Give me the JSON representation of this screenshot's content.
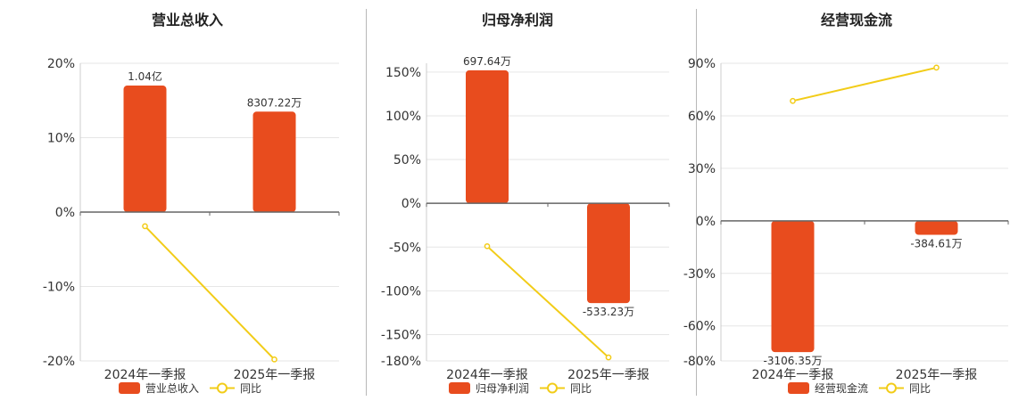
{
  "chart_data": [
    {
      "type": "bar",
      "title": "营业总收入",
      "categories": [
        "2024年一季报",
        "2025年一季报"
      ],
      "series": [
        {
          "name": "营业总收入",
          "kind": "bar",
          "values": [
            17,
            13.5
          ],
          "labels": [
            "1.04亿",
            "8307.22万"
          ],
          "color": "#e84c1e"
        },
        {
          "name": "同比",
          "kind": "line",
          "values": [
            -1.9,
            -19.8
          ],
          "color": "#f2cc18"
        }
      ],
      "ylim": [
        -20,
        20
      ],
      "yticks": [
        20,
        10,
        0,
        -10,
        -20
      ],
      "ytick_labels": [
        "20%",
        "10%",
        "0%",
        "-10%",
        "-20%"
      ],
      "grid": true,
      "legend": "bottom"
    },
    {
      "type": "bar",
      "title": "归母净利润",
      "categories": [
        "2024年一季报",
        "2025年一季报"
      ],
      "series": [
        {
          "name": "归母净利润",
          "kind": "bar",
          "values": [
            152,
            -114
          ],
          "labels": [
            "697.64万",
            "-533.23万"
          ],
          "color": "#e84c1e"
        },
        {
          "name": "同比",
          "kind": "line",
          "values": [
            -49,
            -176
          ],
          "color": "#f2cc18"
        }
      ],
      "ylim": [
        -180,
        160
      ],
      "yticks": [
        150,
        100,
        50,
        0,
        -50,
        -100,
        -150,
        -180
      ],
      "ytick_labels": [
        "150%",
        "100%",
        "50%",
        "0%",
        "-50%",
        "-100%",
        "-150%",
        "-180%"
      ],
      "grid": true,
      "legend": "bottom"
    },
    {
      "type": "bar",
      "title": "经营现金流",
      "categories": [
        "2024年一季报",
        "2025年一季报"
      ],
      "series": [
        {
          "name": "经营现金流",
          "kind": "bar",
          "values": [
            -75,
            -8
          ],
          "labels": [
            "-3106.35万",
            "-384.61万"
          ],
          "color": "#e84c1e"
        },
        {
          "name": "同比",
          "kind": "line",
          "values": [
            68.5,
            87.5
          ],
          "color": "#f2cc18"
        }
      ],
      "ylim": [
        -80,
        90
      ],
      "yticks": [
        90,
        60,
        30,
        0,
        -30,
        -60,
        -80
      ],
      "ytick_labels": [
        "90%",
        "60%",
        "30%",
        "0%",
        "-30%",
        "-60%",
        "-80%"
      ],
      "grid": true,
      "legend": "bottom"
    }
  ]
}
